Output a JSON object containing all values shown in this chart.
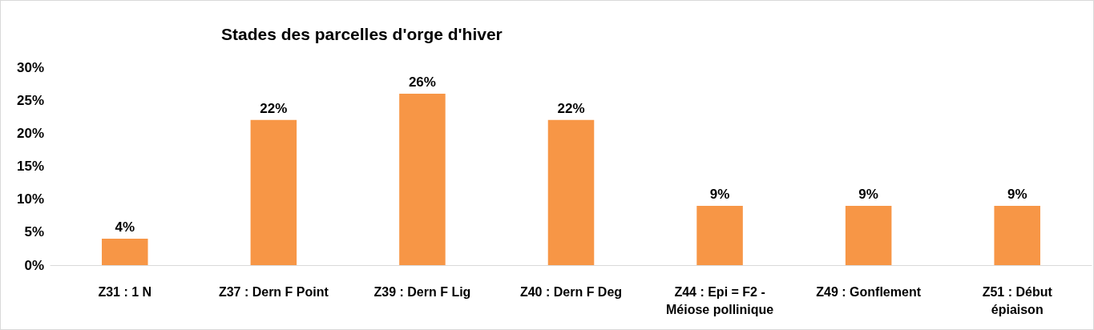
{
  "chart_data": {
    "type": "bar",
    "title": "Stades des parcelles d'orge d'hiver",
    "categories": [
      "Z31 : 1 N",
      "Z37 : Dern F Point",
      "Z39 : Dern F Lig",
      "Z40 : Dern F Deg",
      "Z44 : Epi = F2 -\nMéiose pollinique",
      "Z49 : Gonflement",
      "Z51 : Début\népiaison"
    ],
    "values": [
      4,
      22,
      26,
      22,
      9,
      9,
      9
    ],
    "value_labels": [
      "4%",
      "22%",
      "26%",
      "22%",
      "9%",
      "9%",
      "9%"
    ],
    "color": "#f79646",
    "ylim": [
      0,
      30
    ],
    "yticks": [
      {
        "value": 0,
        "label": "0%"
      },
      {
        "value": 5,
        "label": "5%"
      },
      {
        "value": 10,
        "label": "10%"
      },
      {
        "value": 15,
        "label": "15%"
      },
      {
        "value": 20,
        "label": "20%"
      },
      {
        "value": 25,
        "label": "25%"
      },
      {
        "value": 30,
        "label": "30%"
      }
    ],
    "grid": false
  }
}
